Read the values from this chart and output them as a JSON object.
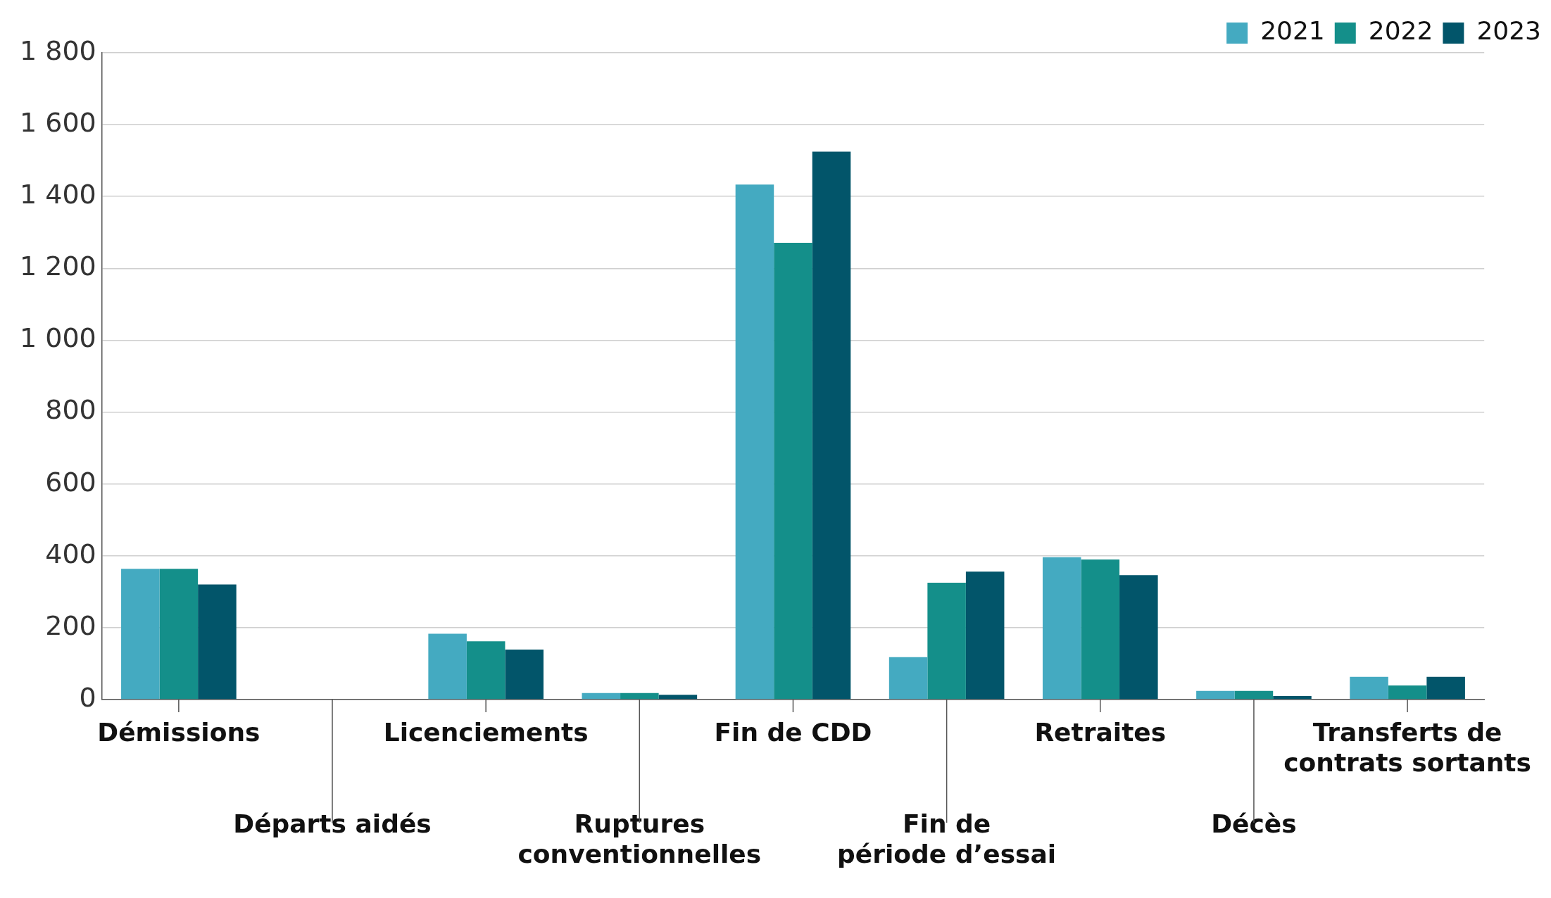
{
  "chart_data": {
    "type": "bar",
    "categories": [
      "Démissions",
      "Départs aidés",
      "Licenciements",
      "Ruptures\nconventionnelles",
      "Fin de CDD",
      "Fin de\npériode d’essai",
      "Retraites",
      "Décès",
      "Transferts de\ncontrats sortants"
    ],
    "series": [
      {
        "name": "2021",
        "color": "#44aac1",
        "values": [
          364,
          0,
          183,
          18,
          1433,
          118,
          396,
          24,
          63
        ]
      },
      {
        "name": "2022",
        "color": "#148f8a",
        "values": [
          364,
          0,
          162,
          18,
          1271,
          325,
          390,
          24,
          39
        ]
      },
      {
        "name": "2023",
        "color": "#02556a",
        "values": [
          320,
          0,
          139,
          13,
          1525,
          356,
          346,
          10,
          63
        ]
      }
    ],
    "ylim": [
      0,
      1800
    ],
    "yticks": [
      0,
      200,
      400,
      600,
      800,
      {
        "value": 1000,
        "label": "1 000"
      },
      {
        "value": 1200,
        "label": "1 200"
      },
      {
        "value": 1400,
        "label": "1 400"
      },
      {
        "value": 1600,
        "label": "1 600"
      },
      {
        "value": 1800,
        "label": "1 800"
      }
    ],
    "grid": "y",
    "legend": "top right"
  }
}
